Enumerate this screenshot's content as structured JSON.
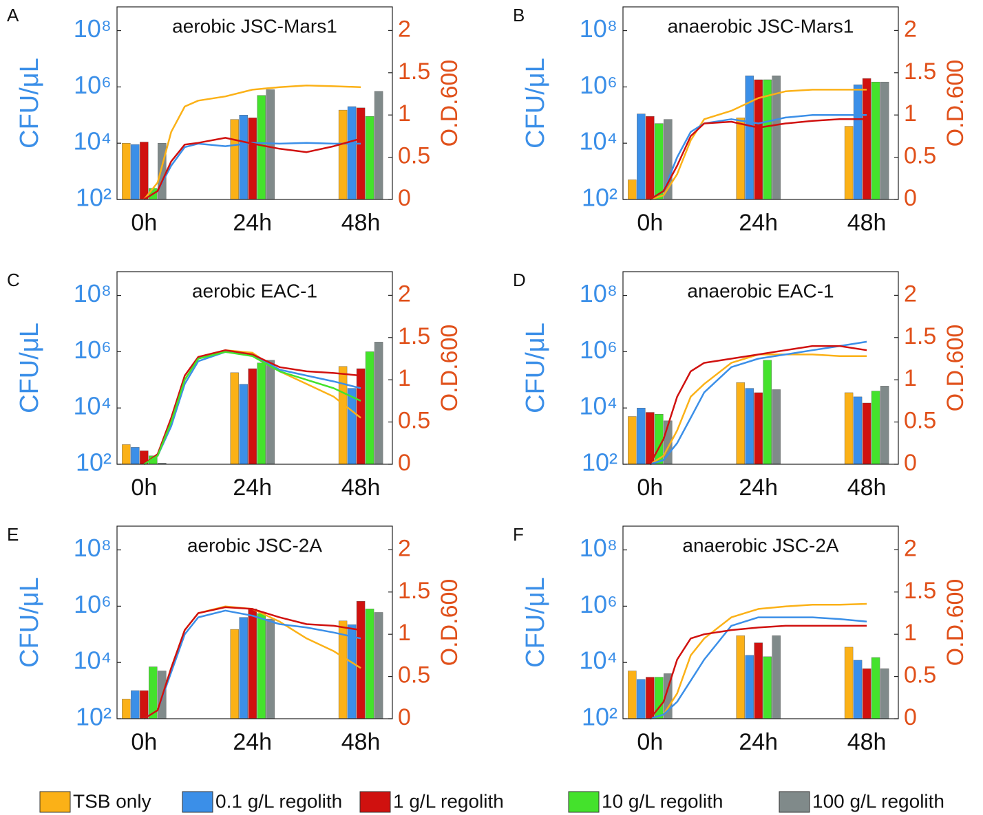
{
  "chart_data": [
    {
      "type": "bar",
      "panel_label": "A",
      "title": "aerobic JSC-Mars1",
      "ylabel": "CFU/μL",
      "y2label": "O.D.600",
      "log_y": true,
      "xlim": [
        -6,
        55
      ],
      "xticks": [
        {
          "value": 0,
          "label": "0h"
        },
        {
          "value": 24,
          "label": "24h"
        },
        {
          "value": 48,
          "label": "48h"
        }
      ],
      "ylim": [
        100,
        700000000
      ],
      "yticks": [
        {
          "value": 100,
          "label": "10²"
        },
        {
          "value": 10000,
          "label": "10⁴"
        },
        {
          "value": 1000000,
          "label": "10⁶"
        },
        {
          "value": 100000000,
          "label": "10⁸"
        }
      ],
      "y2lim": [
        0,
        2.28
      ],
      "y2ticks": [
        0,
        0.5,
        1,
        1.5,
        2
      ],
      "series": [
        {
          "color": "#fbb117",
          "values": [
            10000,
            70000,
            150000
          ]
        },
        {
          "color": "#3b8fe8",
          "values": [
            9000,
            100000,
            200000
          ]
        },
        {
          "color": "#d0110f",
          "values": [
            11000,
            80000,
            180000
          ]
        },
        {
          "color": "#44e22c",
          "values": [
            250,
            500000,
            90000
          ]
        },
        {
          "color": "#808a8a",
          "values": [
            10000,
            800000,
            700000
          ]
        }
      ],
      "line_x": [
        0,
        3,
        6,
        9,
        12,
        18,
        24,
        30,
        36,
        42,
        48
      ],
      "lines": [
        {
          "color": "#fbb117",
          "axis": "y2",
          "values": [
            0,
            0.2,
            0.8,
            1.1,
            1.17,
            1.22,
            1.3,
            1.33,
            1.35,
            1.34,
            1.33
          ]
        },
        {
          "color": "#3b8fe8",
          "axis": "y2",
          "values": [
            0,
            0.1,
            0.4,
            0.62,
            0.66,
            0.63,
            0.67,
            0.66,
            0.67,
            0.66,
            0.66
          ]
        },
        {
          "color": "#d0110f",
          "axis": "y2",
          "values": [
            0,
            0.1,
            0.45,
            0.65,
            0.67,
            0.73,
            0.66,
            0.6,
            0.56,
            0.63,
            0.72
          ]
        }
      ]
    },
    {
      "type": "bar",
      "panel_label": "B",
      "title": "anaerobic JSC-Mars1",
      "ylabel": "CFU/μL",
      "y2label": "O.D.600",
      "log_y": true,
      "xlim": [
        -6,
        55
      ],
      "xticks": [
        {
          "value": 0,
          "label": "0h"
        },
        {
          "value": 24,
          "label": "24h"
        },
        {
          "value": 48,
          "label": "48h"
        }
      ],
      "ylim": [
        100,
        700000000
      ],
      "yticks": [
        {
          "value": 100,
          "label": "10²"
        },
        {
          "value": 10000,
          "label": "10⁴"
        },
        {
          "value": 1000000,
          "label": "10⁶"
        },
        {
          "value": 100000000,
          "label": "10⁸"
        }
      ],
      "y2lim": [
        0,
        2.28
      ],
      "y2ticks": [
        0,
        0.5,
        1,
        1.5,
        2
      ],
      "series": [
        {
          "color": "#fbb117",
          "values": [
            500,
            80000,
            40000
          ]
        },
        {
          "color": "#3b8fe8",
          "values": [
            110000,
            2500000,
            1200000
          ]
        },
        {
          "color": "#d0110f",
          "values": [
            90000,
            1800000,
            2000000
          ]
        },
        {
          "color": "#44e22c",
          "values": [
            50000,
            1800000,
            1500000
          ]
        },
        {
          "color": "#808a8a",
          "values": [
            70000,
            2500000,
            1500000
          ]
        }
      ],
      "line_x": [
        0,
        3,
        6,
        9,
        12,
        18,
        24,
        30,
        36,
        42,
        48
      ],
      "lines": [
        {
          "color": "#fbb117",
          "axis": "y2",
          "values": [
            0,
            0.05,
            0.3,
            0.7,
            0.95,
            1.05,
            1.2,
            1.28,
            1.3,
            1.3,
            1.3
          ]
        },
        {
          "color": "#3b8fe8",
          "axis": "y2",
          "values": [
            0,
            0.1,
            0.5,
            0.8,
            0.9,
            0.95,
            0.9,
            0.97,
            1.0,
            1.0,
            1.0
          ]
        },
        {
          "color": "#d0110f",
          "axis": "y2",
          "values": [
            0,
            0.1,
            0.4,
            0.75,
            0.9,
            0.92,
            0.85,
            0.9,
            0.93,
            0.95,
            0.95
          ]
        }
      ]
    },
    {
      "type": "bar",
      "panel_label": "C",
      "title": "aerobic EAC-1",
      "ylabel": "CFU/μL",
      "y2label": "O.D.600",
      "log_y": true,
      "xlim": [
        -6,
        55
      ],
      "xticks": [
        {
          "value": 0,
          "label": "0h"
        },
        {
          "value": 24,
          "label": "24h"
        },
        {
          "value": 48,
          "label": "48h"
        }
      ],
      "ylim": [
        100,
        700000000
      ],
      "yticks": [
        {
          "value": 100,
          "label": "10²"
        },
        {
          "value": 10000,
          "label": "10⁴"
        },
        {
          "value": 1000000,
          "label": "10⁶"
        },
        {
          "value": 100000000,
          "label": "10⁸"
        }
      ],
      "y2lim": [
        0,
        2.28
      ],
      "y2ticks": [
        0,
        0.5,
        1,
        1.5,
        2
      ],
      "series": [
        {
          "color": "#fbb117",
          "values": [
            500,
            180000,
            300000
          ]
        },
        {
          "color": "#3b8fe8",
          "values": [
            400,
            70000,
            50000
          ]
        },
        {
          "color": "#d0110f",
          "values": [
            300,
            250000,
            250000
          ]
        },
        {
          "color": "#44e22c",
          "values": [
            200,
            400000,
            1000000
          ]
        },
        {
          "color": "#808a8a",
          "values": [
            110,
            500000,
            2200000
          ]
        }
      ],
      "line_x": [
        0,
        3,
        6,
        9,
        12,
        18,
        24,
        30,
        36,
        42,
        48
      ],
      "lines": [
        {
          "color": "#fbb117",
          "axis": "y2",
          "values": [
            0,
            0.1,
            0.5,
            1.0,
            1.25,
            1.35,
            1.32,
            1.1,
            0.95,
            0.8,
            0.55
          ]
        },
        {
          "color": "#3b8fe8",
          "axis": "y2",
          "values": [
            0,
            0.1,
            0.45,
            0.95,
            1.22,
            1.33,
            1.3,
            1.12,
            1.05,
            0.98,
            0.9
          ]
        },
        {
          "color": "#d0110f",
          "axis": "y2",
          "values": [
            0,
            0.12,
            0.55,
            1.05,
            1.27,
            1.35,
            1.3,
            1.15,
            1.1,
            1.08,
            1.05
          ]
        },
        {
          "color": "#44e22c",
          "axis": "y2",
          "values": [
            0,
            0.1,
            0.5,
            1.0,
            1.25,
            1.33,
            1.28,
            1.1,
            1.0,
            0.9,
            0.75
          ]
        }
      ]
    },
    {
      "type": "bar",
      "panel_label": "D",
      "title": "anaerobic EAC-1",
      "ylabel": "CFU/μL",
      "y2label": "O.D.600",
      "log_y": true,
      "xlim": [
        -6,
        55
      ],
      "xticks": [
        {
          "value": 0,
          "label": "0h"
        },
        {
          "value": 24,
          "label": "24h"
        },
        {
          "value": 48,
          "label": "48h"
        }
      ],
      "ylim": [
        100,
        700000000
      ],
      "yticks": [
        {
          "value": 100,
          "label": "10²"
        },
        {
          "value": 10000,
          "label": "10⁴"
        },
        {
          "value": 1000000,
          "label": "10⁶"
        },
        {
          "value": 100000000,
          "label": "10⁸"
        }
      ],
      "y2lim": [
        0,
        2.28
      ],
      "y2ticks": [
        0,
        0.5,
        1,
        1.5,
        2
      ],
      "series": [
        {
          "color": "#fbb117",
          "values": [
            5000,
            80000,
            35000
          ]
        },
        {
          "color": "#3b8fe8",
          "values": [
            10000,
            50000,
            25000
          ]
        },
        {
          "color": "#d0110f",
          "values": [
            7000,
            35000,
            15000
          ]
        },
        {
          "color": "#44e22c",
          "values": [
            6000,
            500000,
            40000
          ]
        },
        {
          "color": "#808a8a",
          "values": [
            3500,
            45000,
            60000
          ]
        }
      ],
      "line_x": [
        0,
        3,
        6,
        9,
        12,
        18,
        24,
        30,
        36,
        42,
        48
      ],
      "lines": [
        {
          "color": "#fbb117",
          "axis": "y2",
          "values": [
            0,
            0.1,
            0.4,
            0.8,
            0.95,
            1.2,
            1.3,
            1.3,
            1.3,
            1.28,
            1.28
          ]
        },
        {
          "color": "#3b8fe8",
          "axis": "y2",
          "values": [
            0,
            0.05,
            0.25,
            0.55,
            0.85,
            1.15,
            1.25,
            1.3,
            1.35,
            1.4,
            1.45
          ]
        },
        {
          "color": "#d0110f",
          "axis": "y2",
          "values": [
            0,
            0.3,
            0.8,
            1.1,
            1.2,
            1.25,
            1.3,
            1.35,
            1.4,
            1.4,
            1.35
          ]
        }
      ]
    },
    {
      "type": "bar",
      "panel_label": "E",
      "title": "aerobic JSC-2A",
      "ylabel": "CFU/μL",
      "y2label": "O.D.600",
      "log_y": true,
      "xlim": [
        -6,
        55
      ],
      "xticks": [
        {
          "value": 0,
          "label": "0h"
        },
        {
          "value": 24,
          "label": "24h"
        },
        {
          "value": 48,
          "label": "48h"
        }
      ],
      "ylim": [
        100,
        700000000
      ],
      "yticks": [
        {
          "value": 100,
          "label": "10²"
        },
        {
          "value": 10000,
          "label": "10⁴"
        },
        {
          "value": 1000000,
          "label": "10⁶"
        },
        {
          "value": 100000000,
          "label": "10⁸"
        }
      ],
      "y2lim": [
        0,
        2.28
      ],
      "y2ticks": [
        0,
        0.5,
        1,
        1.5,
        2
      ],
      "series": [
        {
          "color": "#fbb117",
          "values": [
            500,
            150000,
            300000
          ]
        },
        {
          "color": "#3b8fe8",
          "values": [
            1000,
            400000,
            220000
          ]
        },
        {
          "color": "#d0110f",
          "values": [
            1000,
            800000,
            1500000
          ]
        },
        {
          "color": "#44e22c",
          "values": [
            7000,
            550000,
            800000
          ]
        },
        {
          "color": "#808a8a",
          "values": [
            5000,
            350000,
            600000
          ]
        }
      ],
      "line_x": [
        0,
        3,
        6,
        9,
        12,
        18,
        24,
        30,
        36,
        42,
        48
      ],
      "lines": [
        {
          "color": "#fbb117",
          "axis": "y2",
          "values": [
            0,
            0.1,
            0.6,
            1.05,
            1.25,
            1.33,
            1.3,
            1.15,
            0.95,
            0.8,
            0.6
          ]
        },
        {
          "color": "#3b8fe8",
          "axis": "y2",
          "values": [
            0,
            0.1,
            0.55,
            1.0,
            1.2,
            1.28,
            1.22,
            1.12,
            1.08,
            1.02,
            0.95
          ]
        },
        {
          "color": "#d0110f",
          "axis": "y2",
          "values": [
            0,
            0.1,
            0.6,
            1.05,
            1.25,
            1.32,
            1.3,
            1.2,
            1.12,
            1.1,
            1.05
          ]
        }
      ]
    },
    {
      "type": "bar",
      "panel_label": "F",
      "title": "anaerobic JSC-2A",
      "ylabel": "CFU/μL",
      "y2label": "O.D.600",
      "log_y": true,
      "xlim": [
        -6,
        55
      ],
      "xticks": [
        {
          "value": 0,
          "label": "0h"
        },
        {
          "value": 24,
          "label": "24h"
        },
        {
          "value": 48,
          "label": "48h"
        }
      ],
      "ylim": [
        100,
        700000000
      ],
      "yticks": [
        {
          "value": 100,
          "label": "10²"
        },
        {
          "value": 10000,
          "label": "10⁴"
        },
        {
          "value": 1000000,
          "label": "10⁶"
        },
        {
          "value": 100000000,
          "label": "10⁸"
        }
      ],
      "y2lim": [
        0,
        2.28
      ],
      "y2ticks": [
        0,
        0.5,
        1,
        1.5,
        2
      ],
      "series": [
        {
          "color": "#fbb117",
          "values": [
            5000,
            90000,
            35000
          ]
        },
        {
          "color": "#3b8fe8",
          "values": [
            2500,
            18000,
            12000
          ]
        },
        {
          "color": "#d0110f",
          "values": [
            3000,
            50000,
            6000
          ]
        },
        {
          "color": "#44e22c",
          "values": [
            3000,
            16000,
            15000
          ]
        },
        {
          "color": "#808a8a",
          "values": [
            4000,
            90000,
            6000
          ]
        }
      ],
      "line_x": [
        0,
        3,
        6,
        9,
        12,
        18,
        24,
        30,
        36,
        42,
        48
      ],
      "lines": [
        {
          "color": "#fbb117",
          "axis": "y2",
          "values": [
            0,
            0.05,
            0.3,
            0.75,
            0.95,
            1.2,
            1.3,
            1.33,
            1.35,
            1.35,
            1.36
          ]
        },
        {
          "color": "#3b8fe8",
          "axis": "y2",
          "values": [
            0,
            0.05,
            0.2,
            0.45,
            0.7,
            1.1,
            1.2,
            1.2,
            1.2,
            1.18,
            1.15
          ]
        },
        {
          "color": "#d0110f",
          "axis": "y2",
          "values": [
            0,
            0.2,
            0.7,
            0.95,
            1.0,
            1.05,
            1.08,
            1.1,
            1.1,
            1.1,
            1.1
          ]
        }
      ]
    }
  ],
  "legend": [
    {
      "name": "TSB only",
      "color": "#fbb117"
    },
    {
      "name": "0.1 g/L regolith",
      "color": "#3b8fe8"
    },
    {
      "name": "1 g/L regolith",
      "color": "#d0110f"
    },
    {
      "name": "10 g/L regolith",
      "color": "#44e22c"
    },
    {
      "name": "100 g/L regolith",
      "color": "#808a8a"
    }
  ]
}
